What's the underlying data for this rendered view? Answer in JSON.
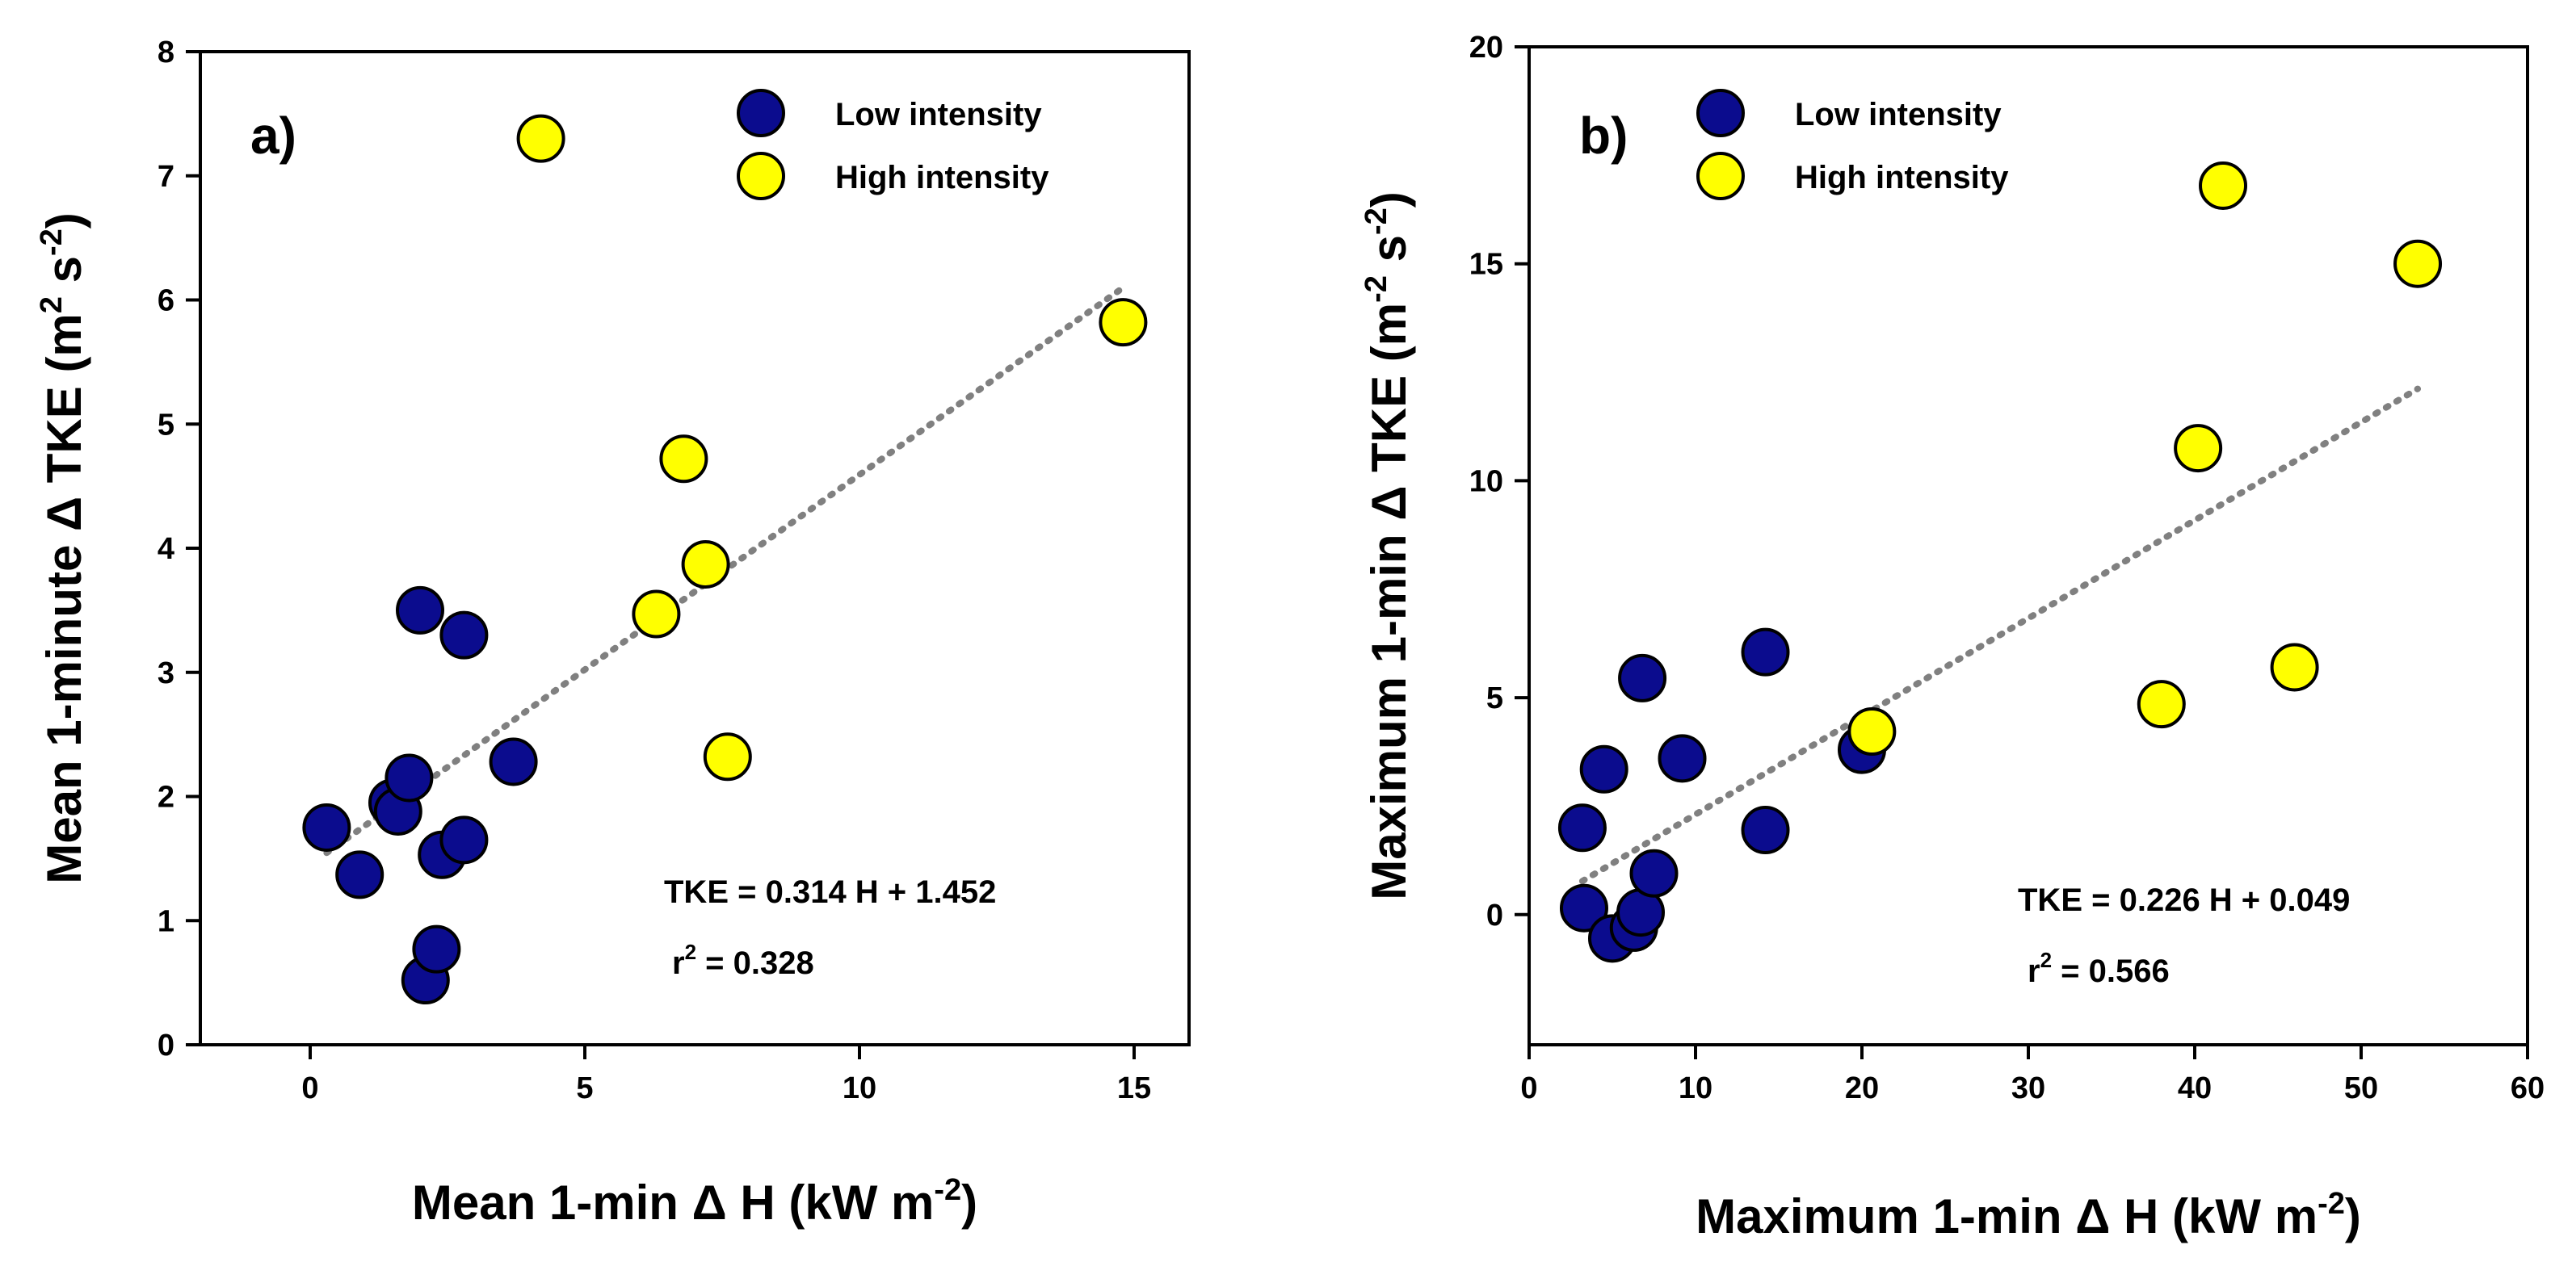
{
  "chart_data": [
    {
      "type": "scatter",
      "panel_label": "a)",
      "xlabel": {
        "pre": "Mean 1-min ",
        "delta": "Δ",
        "post": " H (kW m",
        "sup": "-2",
        "end": ")"
      },
      "ylabel": {
        "pre": "Mean 1-minute ",
        "delta": "Δ",
        "post": " TKE (m",
        "sup1": "2",
        "mid": " s",
        "sup2": "-2",
        "end": ")"
      },
      "xlim": [
        -2,
        16
      ],
      "ylim": [
        0,
        8
      ],
      "xticks": [
        0,
        5,
        10,
        15
      ],
      "yticks": [
        0,
        1,
        2,
        3,
        4,
        5,
        6,
        7,
        8
      ],
      "grid": false,
      "legend_position": "top-right",
      "series": [
        {
          "name": "Low intensity",
          "color": "#0B0C8E",
          "x": [
            0.3,
            0.9,
            1.5,
            1.6,
            1.8,
            2.0,
            2.1,
            2.3,
            2.4,
            2.8,
            2.8,
            3.7
          ],
          "y": [
            1.75,
            1.37,
            1.95,
            1.88,
            2.15,
            3.5,
            0.52,
            0.77,
            1.53,
            1.65,
            3.3,
            2.28
          ]
        },
        {
          "name": "High intensity",
          "color": "#FFFF00",
          "x": [
            4.2,
            6.3,
            6.8,
            7.2,
            7.6,
            14.8
          ],
          "y": [
            7.3,
            3.47,
            4.72,
            3.87,
            2.32,
            5.82
          ]
        }
      ],
      "fit": {
        "slope": 0.314,
        "intercept": 1.452,
        "x_range": [
          0.3,
          14.8
        ]
      },
      "annotations": {
        "equation": "TKE = 0.314 H + 1.452",
        "r2_pre": "r",
        "r2_sup": "2",
        "r2_post": " = 0.328"
      }
    },
    {
      "type": "scatter",
      "panel_label": "b)",
      "xlabel": {
        "pre": "Maximum 1-min ",
        "delta": "Δ",
        "post": " H (kW m",
        "sup": "-2",
        "end": ")"
      },
      "ylabel": {
        "pre": "Maximum 1-min  ",
        "delta": "Δ",
        "post": " TKE (m",
        "sup1": "-2",
        "mid": " s",
        "sup2": "-2",
        "end": ")"
      },
      "xlim": [
        0,
        60
      ],
      "ylim": [
        -3,
        20
      ],
      "xticks": [
        0,
        10,
        20,
        30,
        40,
        50,
        60
      ],
      "yticks": [
        0,
        5,
        10,
        15,
        20
      ],
      "grid": false,
      "legend_position": "top-left",
      "series": [
        {
          "name": "Low intensity",
          "color": "#0B0C8E",
          "x": [
            3.2,
            3.3,
            4.5,
            5.0,
            6.3,
            6.7,
            6.8,
            7.5,
            9.2,
            14.2,
            14.2,
            20.0
          ],
          "y": [
            2.0,
            0.15,
            3.35,
            -0.55,
            -0.3,
            0.05,
            5.45,
            0.95,
            3.6,
            6.05,
            1.95,
            3.8
          ]
        },
        {
          "name": "High intensity",
          "color": "#FFFF00",
          "x": [
            20.6,
            38.0,
            40.2,
            41.7,
            46.0,
            53.4
          ],
          "y": [
            4.22,
            4.85,
            10.75,
            16.8,
            5.7,
            15.0
          ]
        }
      ],
      "fit": {
        "slope": 0.226,
        "intercept": 0.049,
        "x_range": [
          3.2,
          53.4
        ]
      },
      "annotations": {
        "equation": "TKE = 0.226 H + 0.049",
        "r2_pre": "r",
        "r2_sup": "2",
        "r2_post": " = 0.566"
      }
    }
  ]
}
